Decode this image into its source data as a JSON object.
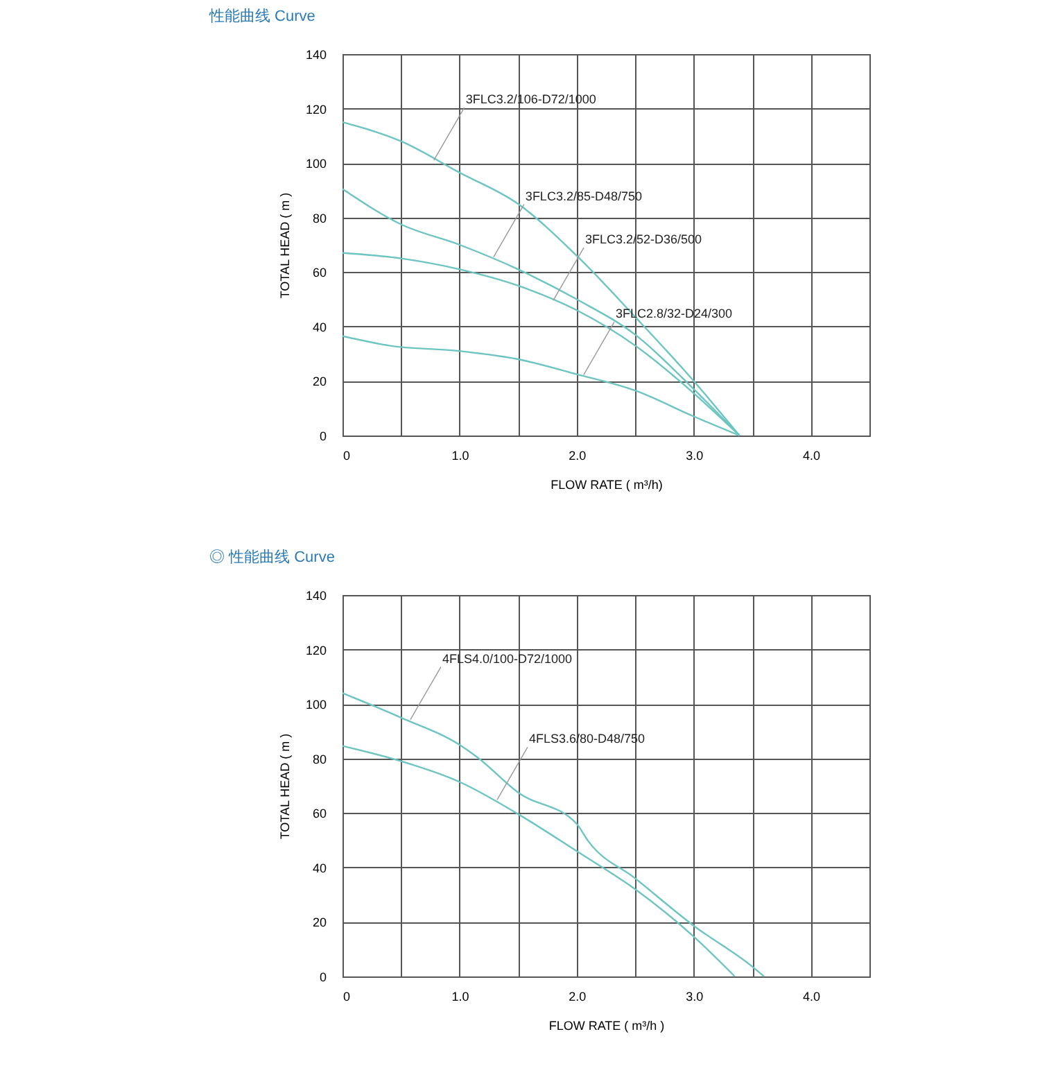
{
  "chart_data": [
    {
      "type": "line",
      "title": "性能曲线 Curve",
      "xlabel": "FLOW RATE ( m³/h)",
      "ylabel": "TOTAL HEAD ( m )",
      "xlim": [
        0,
        4.5
      ],
      "ylim": [
        0,
        140
      ],
      "xticks": [
        {
          "value": 0,
          "label": "0"
        },
        {
          "value": 0.5,
          "label": null
        },
        {
          "value": 1,
          "label": "1.0"
        },
        {
          "value": 1.5,
          "label": null
        },
        {
          "value": 2,
          "label": "2.0"
        },
        {
          "value": 2.5,
          "label": null
        },
        {
          "value": 3,
          "label": "3.0"
        },
        {
          "value": 3.5,
          "label": null
        },
        {
          "value": 4,
          "label": "4.0"
        },
        {
          "value": 4.5,
          "label": null
        }
      ],
      "yticks": [
        0,
        20,
        40,
        60,
        80,
        100,
        120,
        140
      ],
      "grid": true,
      "legend": false,
      "marker": "none",
      "line_style": "solid",
      "series": [
        {
          "color": "#6cc5c0",
          "x": [
            0,
            0.5,
            1,
            1.5,
            2,
            2.5,
            3,
            3.39
          ],
          "values": [
            115,
            108,
            96.5,
            85,
            66,
            43.5,
            20,
            0
          ]
        },
        {
          "color": "#6cc5c0",
          "x": [
            0,
            0.5,
            1,
            1.5,
            2,
            2.5,
            3,
            3.39
          ],
          "values": [
            90.5,
            77.5,
            70,
            61,
            50,
            37,
            17,
            0
          ]
        },
        {
          "color": "#6cc5c0",
          "x": [
            0,
            0.5,
            1,
            1.5,
            2,
            2.5,
            3,
            3.39
          ],
          "values": [
            67,
            65,
            61,
            55,
            46,
            33,
            15.5,
            0
          ]
        },
        {
          "color": "#6cc5c0",
          "x": [
            0,
            0.4,
            1,
            1.5,
            2,
            2.5,
            3,
            3.39
          ],
          "values": [
            36.5,
            33,
            31,
            28,
            22.5,
            16.5,
            7,
            0
          ]
        }
      ],
      "annotations": [
        {
          "text": "3FLC3.2/106-D72/1000",
          "x": 0.78,
          "y": 101
        },
        {
          "text": "3FLC3.2/85-D48/750",
          "x": 1.29,
          "y": 65.5
        },
        {
          "text": "3FLC3.2/52-D36/500",
          "x": 1.8,
          "y": 49.6
        },
        {
          "text": "3FLC2.8/32-D24/300",
          "x": 2.06,
          "y": 22.3
        }
      ]
    },
    {
      "type": "line",
      "title": "◎ 性能曲线 Curve",
      "xlabel": "FLOW RATE ( m³/h )",
      "ylabel": "TOTAL HEAD ( m )",
      "xlim": [
        0,
        4.5
      ],
      "ylim": [
        0,
        140
      ],
      "xticks": [
        {
          "value": 0,
          "label": "0"
        },
        {
          "value": 0.5,
          "label": null
        },
        {
          "value": 1,
          "label": "1.0"
        },
        {
          "value": 1.5,
          "label": null
        },
        {
          "value": 2,
          "label": "2.0"
        },
        {
          "value": 2.5,
          "label": null
        },
        {
          "value": 3,
          "label": "3.0"
        },
        {
          "value": 3.5,
          "label": null
        },
        {
          "value": 4,
          "label": "4.0"
        },
        {
          "value": 4.5,
          "label": null
        }
      ],
      "yticks": [
        0,
        20,
        40,
        60,
        80,
        100,
        120,
        140
      ],
      "grid": true,
      "legend": false,
      "marker": "none",
      "line_style": "solid",
      "series": [
        {
          "color": "#6cc5c0",
          "x": [
            0,
            0.5,
            1,
            1.15,
            1.5,
            2,
            2.1,
            2.5,
            3,
            3.5,
            3.6
          ],
          "values": [
            104,
            95,
            85,
            80.5,
            67.5,
            56,
            49.6,
            36,
            18.6,
            3.6,
            0
          ]
        },
        {
          "color": "#6cc5c0",
          "x": [
            0,
            0.5,
            1,
            1.5,
            2,
            2.5,
            3,
            3.35
          ],
          "values": [
            84.6,
            79,
            71.4,
            59.6,
            46,
            32,
            14.6,
            0
          ]
        }
      ],
      "annotations": [
        {
          "text": "4FLS4.0/100-D72/1000",
          "x": 0.58,
          "y": 94.3
        },
        {
          "text": "4FLS3.6/80-D48/750",
          "x": 1.32,
          "y": 64.8
        }
      ]
    }
  ]
}
